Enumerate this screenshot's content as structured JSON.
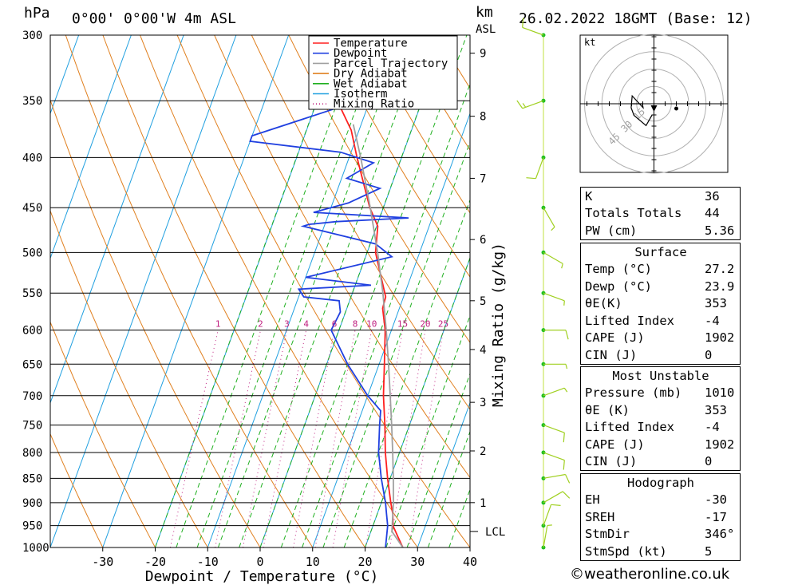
{
  "header": {
    "pressure_unit": "hPa",
    "location": "0°00' 0°00'W 4m ASL",
    "height_unit_km": "km",
    "height_unit_asl": "ASL",
    "datetime": "26.02.2022 18GMT (Base: 12)"
  },
  "chart_data": {
    "type": "skew-t",
    "xlabel": "Dewpoint / Temperature (°C)",
    "ylabel": "hPa",
    "right_axis_label": "km ASL",
    "mixing_ratio_label": "Mixing Ratio (g/kg)",
    "xlim": [
      -40,
      40
    ],
    "ylim": [
      1000,
      300
    ],
    "x_ticks": [
      "-30",
      "-20",
      "-10",
      "0",
      "10",
      "20",
      "30",
      "40"
    ],
    "x_tick_values": [
      -30,
      -20,
      -10,
      0,
      10,
      20,
      30,
      40
    ],
    "pressure_ticks": [
      "300",
      "350",
      "400",
      "450",
      "500",
      "550",
      "600",
      "650",
      "700",
      "750",
      "800",
      "850",
      "900",
      "950",
      "1000"
    ],
    "pressure_values": [
      300,
      350,
      400,
      450,
      500,
      550,
      600,
      650,
      700,
      750,
      800,
      850,
      900,
      950,
      1000
    ],
    "km_ticks": [
      "1",
      "2",
      "3",
      "4",
      "5",
      "6",
      "7",
      "8",
      "9"
    ],
    "km_pressures": [
      900,
      797,
      711,
      628,
      560,
      485,
      420,
      363,
      313
    ],
    "lcl_label": "LCL",
    "lcl_pressure": 963,
    "mixing_ratio_values": [
      "1",
      "2",
      "3",
      "4",
      "6",
      "8",
      "10",
      "15",
      "20",
      "25"
    ],
    "legend": [
      "Temperature",
      "Dewpoint",
      "Parcel Trajectory",
      "Dry Adiabat",
      "Wet Adiabat",
      "Isotherm",
      "Mixing Ratio"
    ],
    "colors": {
      "temperature": "#ff2020",
      "dewpoint": "#2040e0",
      "parcel": "#a0a0a0",
      "dry_adiabat": "#e08020",
      "wet_adiabat": "#20b020",
      "isotherm": "#20a0e0",
      "mixing_ratio": "#c02080",
      "wind": "#a0d020"
    },
    "series": [
      {
        "name": "Temperature",
        "points": [
          [
            1000,
            27.2
          ],
          [
            975,
            25.5
          ],
          [
            950,
            23.8
          ],
          [
            925,
            23.0
          ],
          [
            900,
            21.8
          ],
          [
            850,
            19.5
          ],
          [
            800,
            17.3
          ],
          [
            750,
            15.3
          ],
          [
            700,
            13.0
          ],
          [
            650,
            11.0
          ],
          [
            600,
            8.8
          ],
          [
            570,
            6.8
          ],
          [
            555,
            6.6
          ],
          [
            500,
            1.6
          ],
          [
            470,
            0.2
          ],
          [
            450,
            -2.6
          ],
          [
            400,
            -8.5
          ],
          [
            375,
            -11.5
          ],
          [
            350,
            -16.2
          ],
          [
            320,
            -19.5
          ],
          [
            300,
            -23.0
          ]
        ]
      },
      {
        "name": "Dewpoint",
        "points": [
          [
            1000,
            23.9
          ],
          [
            950,
            22.8
          ],
          [
            925,
            21.8
          ],
          [
            900,
            20.8
          ],
          [
            850,
            18.3
          ],
          [
            800,
            16.0
          ],
          [
            750,
            14.3
          ],
          [
            725,
            13.5
          ],
          [
            700,
            10.0
          ],
          [
            650,
            4.0
          ],
          [
            600,
            -1.5
          ],
          [
            575,
            -1.0
          ],
          [
            560,
            -2.0
          ],
          [
            555,
            -9.0
          ],
          [
            545,
            -10.5
          ],
          [
            540,
            3.0
          ],
          [
            530,
            -10.0
          ],
          [
            505,
            5.0
          ],
          [
            490,
            1.0
          ],
          [
            470,
            -14.0
          ],
          [
            468,
            -13.0
          ],
          [
            465,
            -8.0
          ],
          [
            461,
            5.5
          ],
          [
            455,
            -13.0
          ],
          [
            445,
            -7.0
          ],
          [
            430,
            -2.0
          ],
          [
            420,
            -9.0
          ],
          [
            405,
            -5.0
          ],
          [
            395,
            -12.0
          ],
          [
            385,
            -30.0
          ],
          [
            380,
            -30.0
          ],
          [
            350,
            -12.0
          ],
          [
            340,
            -6.0
          ],
          [
            325,
            -7.0
          ],
          [
            315,
            -10.0
          ],
          [
            300,
            -15.0
          ]
        ]
      },
      {
        "name": "Parcel Trajectory",
        "points": [
          [
            1000,
            27.2
          ],
          [
            963,
            24.0
          ],
          [
            900,
            22.3
          ],
          [
            850,
            20.6
          ],
          [
            800,
            18.7
          ],
          [
            750,
            16.6
          ],
          [
            700,
            14.3
          ],
          [
            650,
            11.8
          ],
          [
            600,
            9.0
          ],
          [
            550,
            5.8
          ],
          [
            500,
            2.0
          ],
          [
            450,
            -2.5
          ],
          [
            400,
            -7.8
          ],
          [
            370,
            -11.5
          ]
        ]
      }
    ],
    "wind_barbs": [
      {
        "p": 1000,
        "dir": 10,
        "spd": 5
      },
      {
        "p": 950,
        "dir": 20,
        "spd": 10
      },
      {
        "p": 900,
        "dir": 60,
        "spd": 10
      },
      {
        "p": 850,
        "dir": 80,
        "spd": 10
      },
      {
        "p": 800,
        "dir": 110,
        "spd": 10
      },
      {
        "p": 750,
        "dir": 110,
        "spd": 10
      },
      {
        "p": 700,
        "dir": 70,
        "spd": 5
      },
      {
        "p": 650,
        "dir": 90,
        "spd": 5
      },
      {
        "p": 600,
        "dir": 90,
        "spd": 10
      },
      {
        "p": 550,
        "dir": 110,
        "spd": 5
      },
      {
        "p": 500,
        "dir": 120,
        "spd": 5
      },
      {
        "p": 450,
        "dir": 150,
        "spd": 5
      },
      {
        "p": 400,
        "dir": 200,
        "spd": 10
      },
      {
        "p": 350,
        "dir": 250,
        "spd": 15
      },
      {
        "p": 300,
        "dir": 290,
        "spd": 10
      }
    ]
  },
  "hodograph": {
    "unit": "kt",
    "ring_labels": [
      "15",
      "30",
      "45"
    ]
  },
  "indices": [
    {
      "label": "K",
      "value": "36"
    },
    {
      "label": "Totals Totals",
      "value": "44"
    },
    {
      "label": "PW (cm)",
      "value": "5.36"
    }
  ],
  "surface": {
    "title": "Surface",
    "rows": [
      {
        "label": "Temp (°C)",
        "value": "27.2"
      },
      {
        "label": "Dewp (°C)",
        "value": "23.9"
      },
      {
        "label": "θE(K)",
        "value": "353"
      },
      {
        "label": "Lifted Index",
        "value": "-4"
      },
      {
        "label": "CAPE (J)",
        "value": "1902"
      },
      {
        "label": "CIN (J)",
        "value": "0"
      }
    ]
  },
  "most_unstable": {
    "title": "Most Unstable",
    "rows": [
      {
        "label": "Pressure (mb)",
        "value": "1010"
      },
      {
        "label": "θE (K)",
        "value": "353"
      },
      {
        "label": "Lifted Index",
        "value": "-4"
      },
      {
        "label": "CAPE (J)",
        "value": "1902"
      },
      {
        "label": "CIN (J)",
        "value": "0"
      }
    ]
  },
  "hodograph_table": {
    "title": "Hodograph",
    "rows": [
      {
        "label": "EH",
        "value": "-30"
      },
      {
        "label": "SREH",
        "value": "-17"
      },
      {
        "label": "StmDir",
        "value": "346°"
      },
      {
        "label": "StmSpd (kt)",
        "value": "5"
      }
    ]
  },
  "footer": {
    "credit": "©weatheronline.co.uk"
  }
}
